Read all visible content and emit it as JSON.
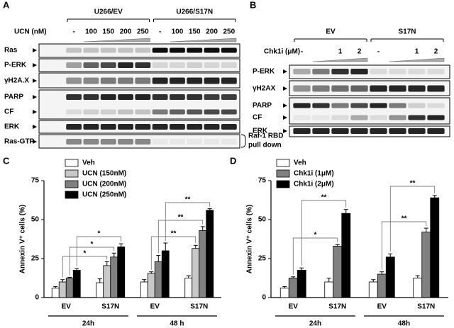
{
  "panels": {
    "a": {
      "label": "A",
      "groups": [
        "U266/EV",
        "U266/S17N"
      ],
      "treatment": "UCN (nM)",
      "lanes": [
        "-",
        "100",
        "150",
        "200",
        "250",
        "-",
        "100",
        "150",
        "200",
        "250"
      ],
      "rows": [
        "Ras",
        "P-ERK",
        "γH2A.X",
        "PARP",
        "CF",
        "ERK",
        "Ras-GTP"
      ],
      "note": [
        "Raf-1 RBD",
        "pull down"
      ]
    },
    "b": {
      "label": "B",
      "groups": [
        "EV",
        "S17N"
      ],
      "treatment": "Chk1i (μM)",
      "lanes": [
        "-",
        "1",
        "2",
        "-",
        "1",
        "2"
      ],
      "rows": [
        "P-ERK",
        "γH2AX",
        "PARP",
        "CF",
        "ERK"
      ]
    },
    "c": {
      "label": "C"
    },
    "d": {
      "label": "D"
    }
  },
  "chart_data": [
    {
      "type": "bar",
      "ylabel": "Annexin V⁺ cells (%)",
      "categories": [
        "EV",
        "S17N",
        "EV",
        "S17N"
      ],
      "groups": [
        "24h",
        "48 h"
      ],
      "ylim": [
        0,
        75
      ],
      "yticks": [
        0,
        25,
        50,
        75
      ],
      "legend": "upper left",
      "series": [
        {
          "name": "Veh",
          "color": "#ffffff",
          "values": [
            6,
            9.5,
            10,
            12.5
          ],
          "errors": [
            1,
            2.5,
            1.5,
            1.5
          ]
        },
        {
          "name": "UCN (150nM)",
          "color": "#c8c8c8",
          "values": [
            10,
            20.5,
            15.5,
            31.5
          ],
          "errors": [
            1.5,
            2.5,
            1,
            2
          ]
        },
        {
          "name": "UCN (200nM)",
          "color": "#808080",
          "values": [
            12.5,
            26,
            23,
            43
          ],
          "errors": [
            0.5,
            2.5,
            4,
            2.5
          ]
        },
        {
          "name": "UCN (250nM)",
          "color": "#000000",
          "values": [
            17.5,
            32.5,
            30,
            56
          ],
          "errors": [
            1,
            2,
            5,
            1
          ]
        }
      ],
      "annotations": [
        "*",
        "*",
        "*",
        "**",
        "**",
        "**"
      ]
    },
    {
      "type": "bar",
      "ylabel": "Annexin V⁺ cells (%)",
      "categories": [
        "EV",
        "S17N",
        "EV",
        "S17N"
      ],
      "groups": [
        "24h",
        "48h"
      ],
      "ylim": [
        0,
        75
      ],
      "yticks": [
        0,
        25,
        50,
        75
      ],
      "legend": "upper left",
      "series": [
        {
          "name": "Veh",
          "color": "#ffffff",
          "values": [
            6,
            10,
            10,
            12.5
          ],
          "errors": [
            1,
            2.5,
            1.5,
            1.5
          ]
        },
        {
          "name": "Chk1i (1μM)",
          "color": "#808080",
          "values": [
            12.5,
            33,
            15,
            42
          ],
          "errors": [
            0.8,
            1,
            1.5,
            2.5
          ]
        },
        {
          "name": "Chk1i (2μM)",
          "color": "#000000",
          "values": [
            17.5,
            54,
            26,
            64
          ],
          "errors": [
            1.5,
            2.5,
            2,
            1.5
          ]
        }
      ],
      "annotations": [
        "*",
        "**",
        "**",
        "**"
      ]
    }
  ]
}
